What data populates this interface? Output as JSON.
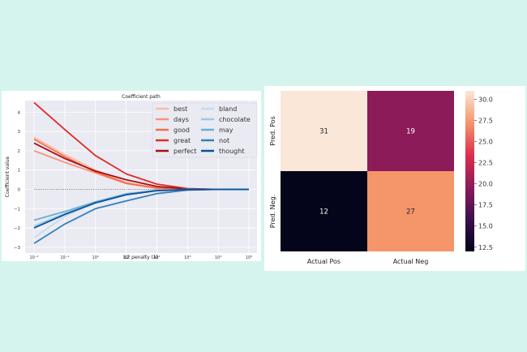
{
  "colors": {
    "page_bg": "#d5f4ee",
    "plot_bg": "#eaeaf2",
    "grid": "#ffffff",
    "zero_line": "#555555"
  },
  "chart_data": [
    {
      "type": "line",
      "title": "Coefficient path",
      "xlabel": "L2 penalty (λ)",
      "ylabel": "Coefficient value",
      "xscale": "log",
      "x": [
        0.01,
        0.1,
        1,
        10,
        100,
        1000,
        10000,
        100000
      ],
      "xticks": [
        "10⁻²",
        "10⁻¹",
        "10⁰",
        "10¹",
        "10²",
        "10³",
        "10⁴",
        "10⁵"
      ],
      "yticks": [
        "4",
        "3",
        "2",
        "1",
        "0",
        "−1",
        "−2",
        "−3"
      ],
      "ylim": [
        -3.3,
        4.6
      ],
      "grid": true,
      "legend_placement": "top-right",
      "zero_line": 0,
      "series": [
        {
          "name": "best",
          "color": "#fcbba1",
          "values": [
            2.7,
            1.8,
            1.0,
            0.35,
            0.07,
            0.01,
            0.0,
            0.0
          ]
        },
        {
          "name": "days",
          "color": "#fc9272",
          "values": [
            2.0,
            1.4,
            0.85,
            0.3,
            0.06,
            0.01,
            0.0,
            0.0
          ]
        },
        {
          "name": "good",
          "color": "#fb6a4a",
          "values": [
            2.6,
            1.7,
            0.9,
            0.32,
            0.07,
            0.01,
            0.0,
            0.0
          ]
        },
        {
          "name": "great",
          "color": "#de2d26",
          "values": [
            4.5,
            3.1,
            1.75,
            0.8,
            0.27,
            0.04,
            0.0,
            0.0
          ]
        },
        {
          "name": "perfect",
          "color": "#a50f15",
          "values": [
            2.4,
            1.6,
            0.95,
            0.5,
            0.15,
            0.02,
            0.0,
            0.0
          ]
        },
        {
          "name": "bland",
          "color": "#c6dbef",
          "values": [
            -2.5,
            -1.4,
            -0.7,
            -0.25,
            -0.05,
            -0.01,
            0.0,
            0.0
          ]
        },
        {
          "name": "chocolate",
          "color": "#9ecae1",
          "values": [
            -1.9,
            -1.25,
            -0.65,
            -0.22,
            -0.05,
            -0.01,
            0.0,
            0.0
          ]
        },
        {
          "name": "may",
          "color": "#6baed6",
          "values": [
            -1.6,
            -1.15,
            -0.65,
            -0.25,
            -0.05,
            -0.01,
            0.0,
            0.0
          ]
        },
        {
          "name": "not",
          "color": "#3182bd",
          "values": [
            -2.8,
            -1.8,
            -1.0,
            -0.6,
            -0.22,
            -0.04,
            0.0,
            0.0
          ]
        },
        {
          "name": "thought",
          "color": "#08519c",
          "values": [
            -2.0,
            -1.3,
            -0.7,
            -0.28,
            -0.07,
            -0.01,
            0.0,
            0.0
          ]
        }
      ]
    },
    {
      "type": "heatmap",
      "x_categories": [
        "Actual Pos",
        "Actual Neg"
      ],
      "y_categories": [
        "Pred. Pos",
        "Pred. Neg."
      ],
      "values": [
        [
          31,
          19
        ],
        [
          12,
          27
        ]
      ],
      "value_labels": [
        [
          "31",
          "19"
        ],
        [
          "12",
          "27"
        ]
      ],
      "colorbar_ticks": [
        "30.0",
        "27.5",
        "25.0",
        "22.5",
        "20.0",
        "17.5",
        "15.0",
        "12.5"
      ],
      "colorbar_range": [
        12,
        31
      ],
      "colormap": "rocket",
      "cell_colors": [
        [
          "#fae7d8",
          "#8c1b5a"
        ],
        [
          "#04051a",
          "#f4956a"
        ]
      ]
    }
  ]
}
